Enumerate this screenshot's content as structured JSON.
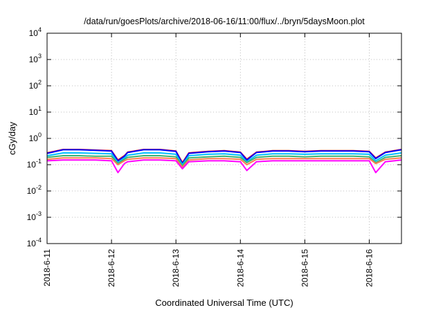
{
  "chart_data": {
    "type": "line",
    "title": "/data/run/goesPlots/archive/2018-06-16/11:00/flux/../bryn/5daysMoon.plot",
    "xlabel": "Coordinated Universal Time (UTC)",
    "ylabel": "cGy/day",
    "yscale": "log",
    "ylim": [
      0.0001,
      10000
    ],
    "xlim": [
      0,
      5.5
    ],
    "grid": "dotted",
    "x_tick_labels": [
      "2018-6-11",
      "2018-6-12",
      "2018-6-13",
      "2018-6-14",
      "2018-6-15",
      "2018-6-16"
    ],
    "x_tick_values": [
      0,
      1,
      2,
      3,
      4,
      5
    ],
    "y_ticks": [
      {
        "base": "10",
        "exp": "4",
        "value": 10000
      },
      {
        "base": "10",
        "exp": "3",
        "value": 1000
      },
      {
        "base": "10",
        "exp": "2",
        "value": 100
      },
      {
        "base": "10",
        "exp": "1",
        "value": 10
      },
      {
        "base": "10",
        "exp": "0",
        "value": 1
      },
      {
        "base": "10",
        "exp": "-1",
        "value": 0.1
      },
      {
        "base": "10",
        "exp": "-2",
        "value": 0.01
      },
      {
        "base": "10",
        "exp": "-3",
        "value": 0.001
      },
      {
        "base": "10",
        "exp": "-4",
        "value": 0.0001
      }
    ],
    "x": [
      0,
      0.25,
      0.5,
      0.75,
      1.0,
      1.1,
      1.2,
      1.25,
      1.5,
      1.75,
      2.0,
      2.1,
      2.2,
      2.5,
      2.75,
      3.0,
      3.1,
      3.25,
      3.5,
      3.75,
      4.0,
      4.25,
      4.5,
      4.75,
      5.0,
      5.1,
      5.25,
      5.5
    ],
    "series": [
      {
        "color": "#ff0000",
        "values": [
          0.28,
          0.38,
          0.38,
          0.36,
          0.34,
          0.15,
          0.22,
          0.3,
          0.38,
          0.38,
          0.33,
          0.12,
          0.28,
          0.32,
          0.34,
          0.3,
          0.16,
          0.3,
          0.34,
          0.34,
          0.32,
          0.34,
          0.34,
          0.34,
          0.32,
          0.18,
          0.3,
          0.38
        ]
      },
      {
        "color": "#0000ff",
        "values": [
          0.27,
          0.37,
          0.37,
          0.35,
          0.33,
          0.14,
          0.21,
          0.29,
          0.37,
          0.37,
          0.32,
          0.11,
          0.27,
          0.31,
          0.33,
          0.29,
          0.15,
          0.29,
          0.33,
          0.33,
          0.31,
          0.33,
          0.33,
          0.33,
          0.31,
          0.17,
          0.29,
          0.37
        ]
      },
      {
        "color": "#00bfff",
        "values": [
          0.22,
          0.28,
          0.28,
          0.27,
          0.26,
          0.12,
          0.18,
          0.23,
          0.28,
          0.28,
          0.25,
          0.1,
          0.22,
          0.25,
          0.26,
          0.23,
          0.13,
          0.23,
          0.26,
          0.26,
          0.25,
          0.26,
          0.26,
          0.26,
          0.25,
          0.14,
          0.23,
          0.28
        ]
      },
      {
        "color": "#3cb371",
        "values": [
          0.19,
          0.22,
          0.22,
          0.21,
          0.21,
          0.11,
          0.16,
          0.19,
          0.22,
          0.22,
          0.2,
          0.09,
          0.18,
          0.2,
          0.21,
          0.19,
          0.12,
          0.19,
          0.21,
          0.21,
          0.2,
          0.21,
          0.21,
          0.21,
          0.2,
          0.12,
          0.19,
          0.22
        ]
      },
      {
        "color": "#ff7f50",
        "values": [
          0.16,
          0.18,
          0.18,
          0.18,
          0.17,
          0.1,
          0.14,
          0.16,
          0.18,
          0.18,
          0.17,
          0.08,
          0.15,
          0.17,
          0.17,
          0.16,
          0.1,
          0.16,
          0.17,
          0.17,
          0.17,
          0.17,
          0.17,
          0.17,
          0.17,
          0.11,
          0.16,
          0.18
        ]
      },
      {
        "color": "#ff00ff",
        "values": [
          0.14,
          0.15,
          0.15,
          0.15,
          0.14,
          0.05,
          0.11,
          0.13,
          0.15,
          0.15,
          0.14,
          0.07,
          0.13,
          0.14,
          0.14,
          0.13,
          0.06,
          0.13,
          0.14,
          0.14,
          0.14,
          0.14,
          0.14,
          0.14,
          0.14,
          0.05,
          0.13,
          0.15
        ]
      }
    ]
  }
}
